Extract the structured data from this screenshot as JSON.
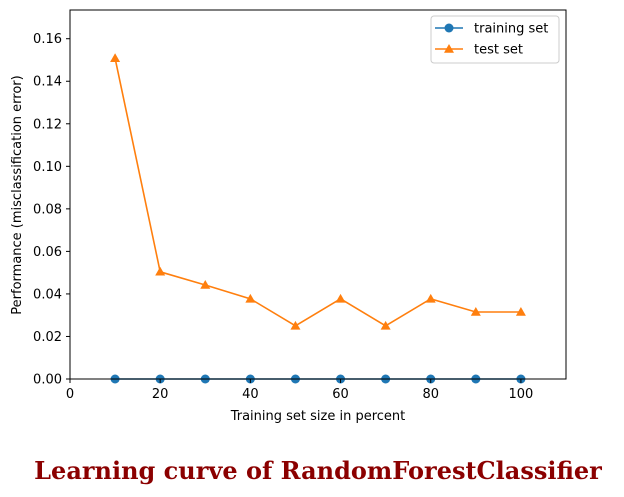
{
  "caption": "Learning curve of RandomForestClassifier",
  "chart_data": {
    "type": "line",
    "xlabel": "Training set size in percent",
    "ylabel": "Performance (misclassification error)",
    "xlim": [
      0,
      110
    ],
    "ylim": [
      0,
      0.1735
    ],
    "xticks": [
      "0",
      "20",
      "40",
      "60",
      "80",
      "100"
    ],
    "yticks": [
      "0.00",
      "0.02",
      "0.04",
      "0.06",
      "0.08",
      "0.10",
      "0.12",
      "0.14",
      "0.16"
    ],
    "grid": false,
    "legend_position": "top-right",
    "x": [
      10,
      20,
      30,
      40,
      50,
      60,
      70,
      80,
      90,
      100
    ],
    "series": [
      {
        "name": "training set",
        "color": "#1f77b4",
        "marker": "circle",
        "values": [
          0,
          0,
          0,
          0,
          0,
          0,
          0,
          0,
          0,
          0
        ]
      },
      {
        "name": "test set",
        "color": "#ff7f0e",
        "marker": "triangle",
        "values": [
          0.1508,
          0.0504,
          0.0442,
          0.0377,
          0.025,
          0.0377,
          0.025,
          0.0377,
          0.0315,
          0.0315
        ]
      }
    ]
  }
}
